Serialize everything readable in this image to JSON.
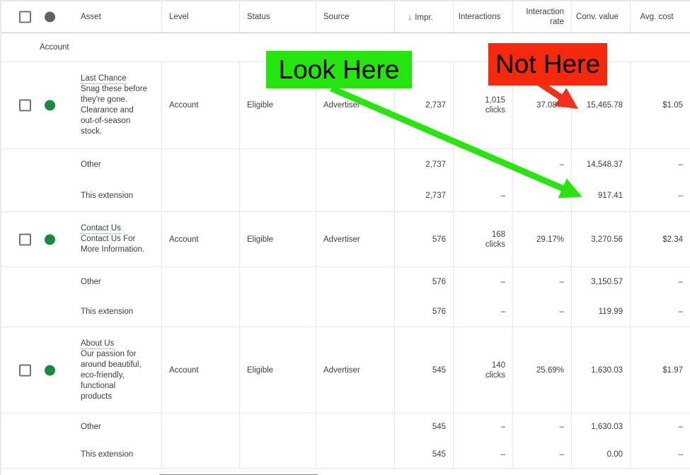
{
  "header": {
    "sort_icon": "↓",
    "columns": {
      "asset": "Asset",
      "level": "Level",
      "status": "Status",
      "source": "Source",
      "impr": "Impr.",
      "interactions": "Interactions",
      "interaction_rate": "Interaction rate",
      "conv_value": "Conv. value",
      "avg_cost": "Avg. cost"
    }
  },
  "account_row": {
    "label": "Account"
  },
  "colors": {
    "status_dot": "#1b8a41",
    "header_dot": "#5f6368",
    "scrollbar": "#4f8df7"
  },
  "annotations": {
    "look_here": {
      "text": "Look Here",
      "bg": "#26e40e",
      "arrow": "#2ce312"
    },
    "not_here": {
      "text": "Not Here",
      "bg": "#f4290d",
      "arrow": "#ee3118"
    }
  },
  "sections": [
    {
      "rows": [
        {
          "type": "asset",
          "title": "Last Chance",
          "description": "Snag these before they're gone. Clearance and out-of-season stock.",
          "level": "Account",
          "status": "Eligible",
          "source": "Advertiser",
          "impr": "2,737",
          "interactions": "1,015",
          "interactions_unit": "clicks",
          "rate": "37.08%",
          "conv_value": "15,465.78",
          "avg_cost": "$1.05"
        }
      ]
    },
    {
      "rows": [
        {
          "type": "sub",
          "title": "Other",
          "impr": "2,737",
          "interactions": "–",
          "rate": "–",
          "conv_value": "14,548.37",
          "avg_cost": "–"
        },
        {
          "type": "sub",
          "title": "This extension",
          "impr": "2,737",
          "interactions": "–",
          "rate": "–",
          "conv_value": "917.41",
          "avg_cost": "–"
        }
      ]
    },
    {
      "rows": [
        {
          "type": "asset",
          "title": "Contact Us",
          "description": "Contact Us For More Information.",
          "level": "Account",
          "status": "Eligible",
          "source": "Advertiser",
          "impr": "576",
          "interactions": "168",
          "interactions_unit": "clicks",
          "rate": "29.17%",
          "conv_value": "3,270.56",
          "avg_cost": "$2.34"
        }
      ]
    },
    {
      "rows": [
        {
          "type": "sub",
          "title": "Other",
          "impr": "576",
          "interactions": "–",
          "rate": "–",
          "conv_value": "3,150.57",
          "avg_cost": "–"
        },
        {
          "type": "sub",
          "title": "This extension",
          "impr": "576",
          "interactions": "–",
          "rate": "–",
          "conv_value": "119.99",
          "avg_cost": "–"
        }
      ]
    },
    {
      "rows": [
        {
          "type": "asset",
          "title": "About Us",
          "description": "Our passion for around beautiful, eco-friendly, functional products",
          "level": "Account",
          "status": "Eligible",
          "source": "Advertiser",
          "impr": "545",
          "interactions": "140",
          "interactions_unit": "clicks",
          "rate": "25.69%",
          "conv_value": "1,630.03",
          "avg_cost": "$1.97"
        }
      ]
    },
    {
      "rows": [
        {
          "type": "sub",
          "title": "Other",
          "impr": "545",
          "interactions": "–",
          "rate": "–",
          "conv_value": "1,630.03",
          "avg_cost": "–"
        },
        {
          "type": "sub",
          "title": "This extension",
          "impr": "545",
          "interactions": "–",
          "rate": "–",
          "conv_value": "0.00",
          "avg_cost": "–"
        }
      ]
    }
  ]
}
